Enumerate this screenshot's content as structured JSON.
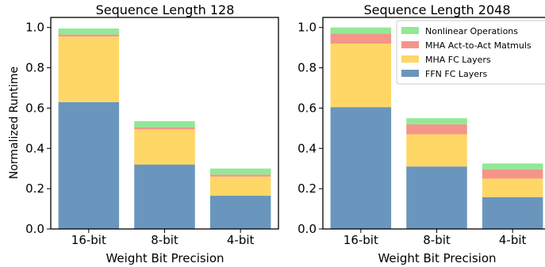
{
  "chart_data": [
    {
      "type": "bar",
      "stacked": true,
      "title": "Sequence Length 128",
      "xlabel": "Weight Bit Precision",
      "ylabel": "Normalized Runtime",
      "ylim": [
        0,
        1.05
      ],
      "yticks": [
        0.0,
        0.2,
        0.4,
        0.6,
        0.8,
        1.0
      ],
      "ytick_labels": [
        "0.0",
        "0.2",
        "0.4",
        "0.6",
        "0.8",
        "1.0"
      ],
      "categories": [
        "16-bit",
        "8-bit",
        "4-bit"
      ],
      "series": [
        {
          "name": "FFN FC Layers",
          "color": "#6a96be",
          "values": [
            0.63,
            0.32,
            0.165
          ]
        },
        {
          "name": "MHA FC Layers",
          "color": "#fed766",
          "values": [
            0.325,
            0.175,
            0.095
          ]
        },
        {
          "name": "MHA Act-to-Act Matmuls",
          "color": "#f4958a",
          "values": [
            0.01,
            0.01,
            0.01
          ]
        },
        {
          "name": "Nonlinear Operations",
          "color": "#93e896",
          "values": [
            0.03,
            0.03,
            0.03
          ]
        }
      ],
      "legend": false
    },
    {
      "type": "bar",
      "stacked": true,
      "title": "Sequence Length 2048",
      "xlabel": "Weight Bit Precision",
      "ylabel": "",
      "ylim": [
        0,
        1.05
      ],
      "yticks": [
        0.0,
        0.2,
        0.4,
        0.6,
        0.8,
        1.0
      ],
      "ytick_labels": [
        "0.0",
        "0.2",
        "0.4",
        "0.6",
        "0.8",
        "1.0"
      ],
      "categories": [
        "16-bit",
        "8-bit",
        "4-bit"
      ],
      "series": [
        {
          "name": "FFN FC Layers",
          "color": "#6a96be",
          "values": [
            0.605,
            0.31,
            0.158
          ]
        },
        {
          "name": "MHA FC Layers",
          "color": "#fed766",
          "values": [
            0.315,
            0.16,
            0.092
          ]
        },
        {
          "name": "MHA Act-to-Act Matmuls",
          "color": "#f4958a",
          "values": [
            0.05,
            0.05,
            0.045
          ]
        },
        {
          "name": "Nonlinear Operations",
          "color": "#93e896",
          "values": [
            0.03,
            0.03,
            0.03
          ]
        }
      ],
      "legend": true,
      "legend_position": "top-right",
      "legend_order": [
        "Nonlinear Operations",
        "MHA Act-to-Act Matmuls",
        "MHA FC Layers",
        "FFN FC Layers"
      ]
    }
  ]
}
